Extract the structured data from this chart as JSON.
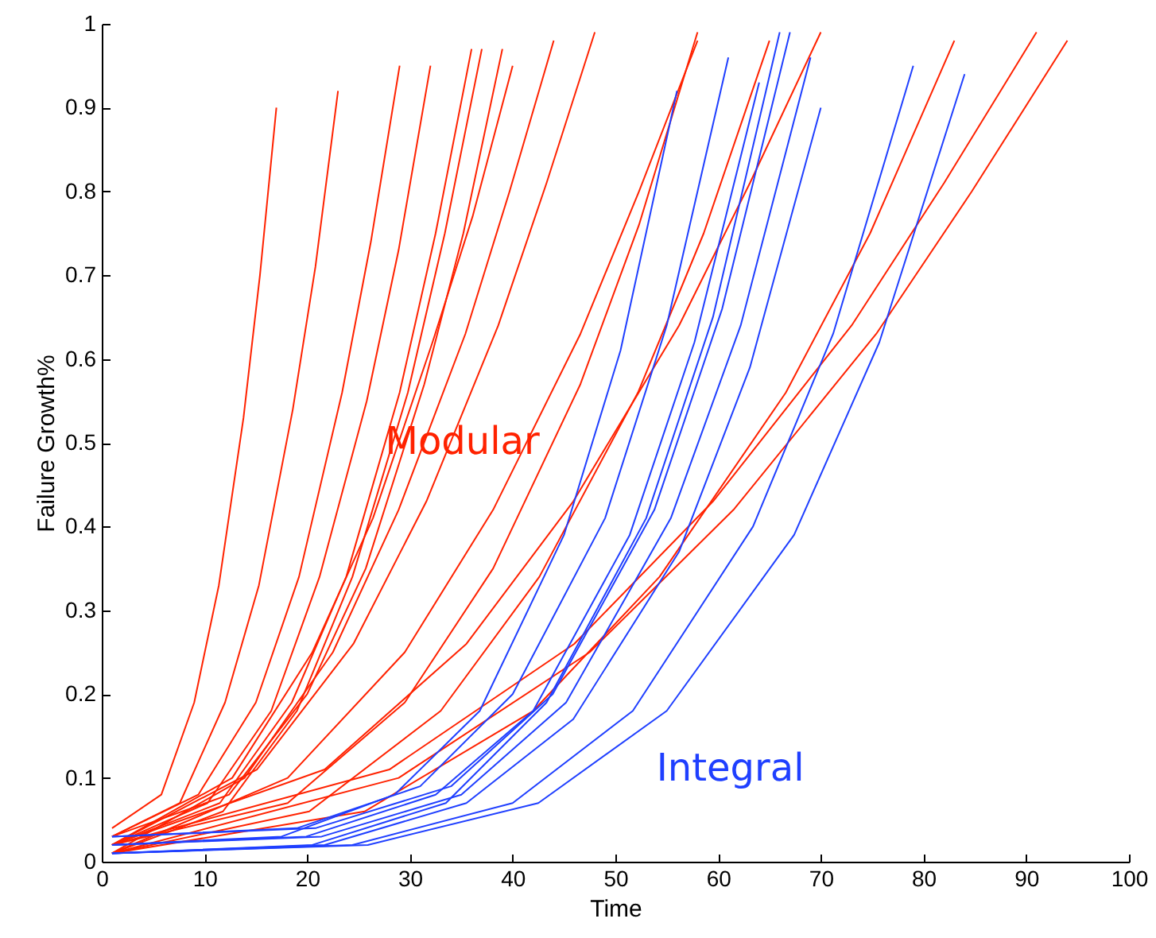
{
  "chart_data": {
    "type": "line",
    "xlabel": "Time",
    "ylabel": "Failure Growth%",
    "xlim": [
      0,
      100
    ],
    "ylim": [
      0,
      1
    ],
    "xticks": [
      0,
      10,
      20,
      30,
      40,
      50,
      60,
      70,
      80,
      90,
      100
    ],
    "yticks": [
      0,
      0.1,
      0.2,
      0.3,
      0.4,
      0.5,
      0.6,
      0.7,
      0.8,
      0.9,
      1
    ],
    "annotations": [
      "Modular",
      "Integral"
    ],
    "series": [
      {
        "color": "#ff2200",
        "x": [
          1,
          5.8,
          9,
          11.4,
          13.8,
          15.4,
          17
        ],
        "values": [
          0.04,
          0.08,
          0.19,
          0.33,
          0.53,
          0.7,
          0.9
        ]
      },
      {
        "color": "#ff2200",
        "x": [
          1,
          7.6,
          12,
          15.3,
          18.6,
          20.8,
          23
        ],
        "values": [
          0.03,
          0.07,
          0.19,
          0.33,
          0.54,
          0.71,
          0.92
        ]
      },
      {
        "color": "#ff2200",
        "x": [
          1,
          9.4,
          15,
          19.2,
          23.4,
          26.2,
          29
        ],
        "values": [
          0.03,
          0.08,
          0.19,
          0.34,
          0.56,
          0.74,
          0.95
        ]
      },
      {
        "color": "#ff2200",
        "x": [
          1,
          10.3,
          16.5,
          21.2,
          25.8,
          28.9,
          32
        ],
        "values": [
          0.02,
          0.07,
          0.18,
          0.34,
          0.55,
          0.73,
          0.95
        ]
      },
      {
        "color": "#ff2200",
        "x": [
          1,
          11.5,
          18.5,
          23.8,
          29,
          32.5,
          36
        ],
        "values": [
          0.02,
          0.07,
          0.19,
          0.34,
          0.56,
          0.75,
          0.97
        ]
      },
      {
        "color": "#ff2200",
        "x": [
          1,
          11.8,
          19,
          24.4,
          29.8,
          33.4,
          37
        ],
        "values": [
          0.01,
          0.06,
          0.18,
          0.34,
          0.56,
          0.75,
          0.97
        ]
      },
      {
        "color": "#ff2200",
        "x": [
          1,
          12.4,
          20,
          25.7,
          31.4,
          35.2,
          39
        ],
        "values": [
          0.03,
          0.08,
          0.2,
          0.35,
          0.57,
          0.75,
          0.97
        ]
      },
      {
        "color": "#ff2200",
        "x": [
          1,
          12.7,
          20.5,
          26.4,
          32.2,
          36.1,
          40
        ],
        "values": [
          0.02,
          0.1,
          0.25,
          0.41,
          0.62,
          0.77,
          0.95
        ]
      },
      {
        "color": "#ff2200",
        "x": [
          1,
          13.9,
          22.5,
          28.9,
          35.4,
          39.7,
          44
        ],
        "values": [
          0.01,
          0.1,
          0.25,
          0.42,
          0.63,
          0.8,
          0.98
        ]
      },
      {
        "color": "#ff2200",
        "x": [
          1,
          15.1,
          24.5,
          31.6,
          38.6,
          43.3,
          48
        ],
        "values": [
          0.02,
          0.11,
          0.26,
          0.43,
          0.64,
          0.81,
          0.99
        ]
      },
      {
        "color": "#ff2200",
        "x": [
          1,
          18.1,
          29.5,
          38.1,
          46.6,
          52.3,
          58
        ],
        "values": [
          0.02,
          0.07,
          0.19,
          0.35,
          0.57,
          0.76,
          0.99
        ]
      },
      {
        "color": "#ff2200",
        "x": [
          1,
          18.1,
          29.5,
          38.1,
          46.6,
          52.3,
          58
        ],
        "values": [
          0.01,
          0.1,
          0.25,
          0.42,
          0.63,
          0.8,
          0.98
        ]
      },
      {
        "color": "#ff2200",
        "x": [
          1,
          20.2,
          33,
          42.6,
          52.2,
          58.6,
          65
        ],
        "values": [
          0.01,
          0.06,
          0.18,
          0.34,
          0.56,
          0.75,
          0.98
        ]
      },
      {
        "color": "#ff2200",
        "x": [
          1,
          21.7,
          35.5,
          45.9,
          56.2,
          63.1,
          70
        ],
        "values": [
          0.02,
          0.11,
          0.26,
          0.43,
          0.64,
          0.81,
          0.99
        ]
      },
      {
        "color": "#ff2200",
        "x": [
          1,
          25.6,
          42,
          54.3,
          66.6,
          74.8,
          83
        ],
        "values": [
          0.01,
          0.06,
          0.18,
          0.34,
          0.56,
          0.75,
          0.98
        ]
      },
      {
        "color": "#ff2200",
        "x": [
          1,
          28,
          46,
          59.5,
          73,
          82,
          91
        ],
        "values": [
          0.02,
          0.11,
          0.26,
          0.43,
          0.64,
          0.81,
          0.99
        ]
      },
      {
        "color": "#ff2200",
        "x": [
          1,
          28.9,
          47.5,
          61.5,
          75.4,
          84.7,
          94
        ],
        "values": [
          0.01,
          0.1,
          0.25,
          0.42,
          0.63,
          0.8,
          0.98
        ]
      },
      {
        "color": "#1f3fff",
        "x": [
          1,
          17.5,
          28.5,
          36.8,
          45,
          50.5,
          56
        ],
        "values": [
          0.02,
          0.03,
          0.08,
          0.18,
          0.39,
          0.61,
          0.92
        ]
      },
      {
        "color": "#1f3fff",
        "x": [
          1,
          19,
          31,
          40,
          49,
          55,
          61
        ],
        "values": [
          0.03,
          0.04,
          0.09,
          0.2,
          0.41,
          0.64,
          0.96
        ]
      },
      {
        "color": "#1f3fff",
        "x": [
          1,
          19.9,
          32.5,
          42,
          51.4,
          57.7,
          64
        ],
        "values": [
          0.02,
          0.03,
          0.08,
          0.18,
          0.39,
          0.62,
          0.93
        ]
      },
      {
        "color": "#1f3fff",
        "x": [
          1,
          20.5,
          33.5,
          43.3,
          53,
          59.5,
          66
        ],
        "values": [
          0.01,
          0.02,
          0.07,
          0.19,
          0.41,
          0.65,
          0.99
        ]
      },
      {
        "color": "#1f3fff",
        "x": [
          1,
          20.8,
          34,
          43.9,
          53.8,
          60.4,
          67
        ],
        "values": [
          0.03,
          0.04,
          0.09,
          0.2,
          0.42,
          0.66,
          0.99
        ]
      },
      {
        "color": "#1f3fff",
        "x": [
          1,
          21.4,
          35,
          45.2,
          55.4,
          62.2,
          69
        ],
        "values": [
          0.02,
          0.03,
          0.08,
          0.19,
          0.41,
          0.64,
          0.96
        ]
      },
      {
        "color": "#1f3fff",
        "x": [
          1,
          21.7,
          35.5,
          45.9,
          56.2,
          63.1,
          70
        ],
        "values": [
          0.01,
          0.02,
          0.07,
          0.17,
          0.37,
          0.59,
          0.9
        ]
      },
      {
        "color": "#1f3fff",
        "x": [
          1,
          24.4,
          40,
          51.7,
          63.4,
          71.2,
          79
        ],
        "values": [
          0.01,
          0.02,
          0.07,
          0.18,
          0.4,
          0.63,
          0.95
        ]
      },
      {
        "color": "#1f3fff",
        "x": [
          1,
          25.9,
          42.5,
          55,
          67.4,
          75.7,
          84
        ],
        "values": [
          0.01,
          0.02,
          0.07,
          0.18,
          0.39,
          0.62,
          0.94
        ]
      }
    ]
  }
}
